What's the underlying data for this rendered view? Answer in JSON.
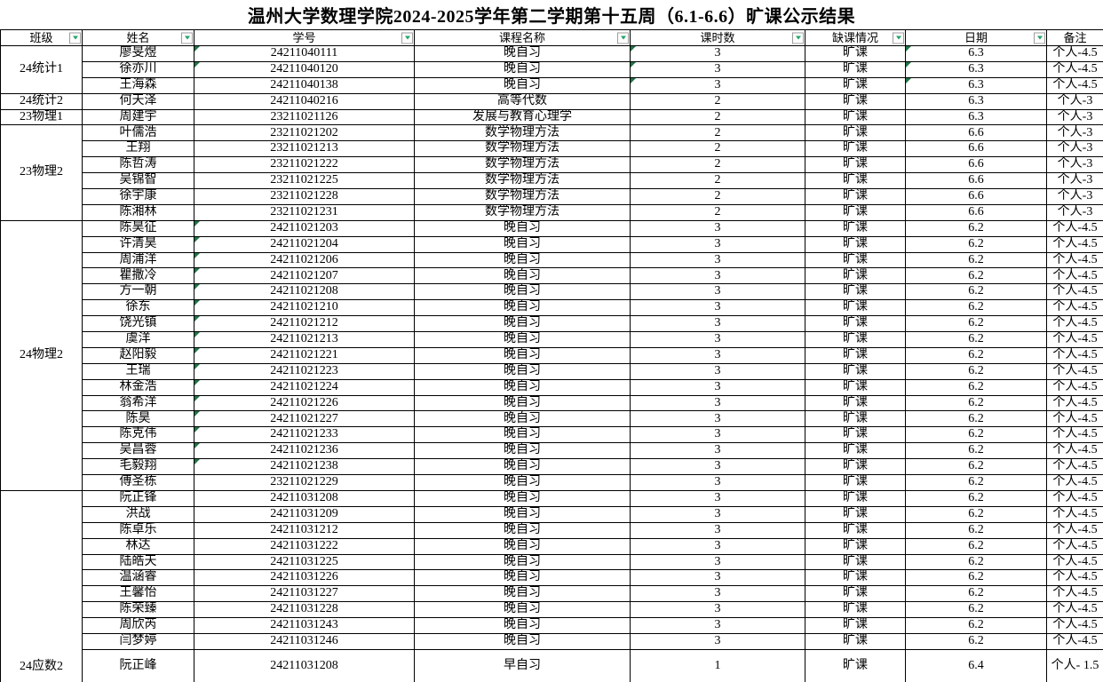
{
  "title": "温州大学数理学院2024-2025学年第二学期第十五周（6.1-6.6）旷课公示结果",
  "colors": {
    "indicator_green": "#217346",
    "filter_arrow_green": "#21a366",
    "grid_border": "#000000",
    "background": "#ffffff"
  },
  "table": {
    "columns": [
      {
        "label": "班级",
        "filter": true
      },
      {
        "label": "姓名",
        "filter": true
      },
      {
        "label": "学号",
        "filter": true
      },
      {
        "label": "课程名称",
        "filter": true
      },
      {
        "label": "课时数",
        "filter": true
      },
      {
        "label": "缺课情况",
        "filter": true
      },
      {
        "label": "日期",
        "filter": true
      },
      {
        "label": "备注",
        "filter": false
      }
    ],
    "class_groups": [
      {
        "label": "24统计1",
        "start": 0,
        "span": 3
      },
      {
        "label": "24统计2",
        "start": 3,
        "span": 1
      },
      {
        "label": "23物理1",
        "start": 4,
        "span": 1
      },
      {
        "label": "23物理2",
        "start": 5,
        "span": 6
      },
      {
        "label": "24物理2",
        "start": 11,
        "span": 17
      },
      {
        "label": "24应数2",
        "start": 28,
        "span": 11,
        "valign": "bottom"
      }
    ],
    "rows": [
      {
        "name": "廖旻煜",
        "id": "24211040111",
        "course": "晚自习",
        "hours": "3",
        "status": "旷课",
        "date": "6.3",
        "remark": "个人-4.5",
        "flags": [
          "id",
          "hours",
          "date"
        ]
      },
      {
        "name": "徐亦川",
        "id": "24211040120",
        "course": "晚自习",
        "hours": "3",
        "status": "旷课",
        "date": "6.3",
        "remark": "个人-4.5",
        "flags": [
          "id",
          "hours",
          "date"
        ]
      },
      {
        "name": "王海森",
        "id": "24211040138",
        "course": "晚自习",
        "hours": "3",
        "status": "旷课",
        "date": "6.3",
        "remark": "个人-4.5",
        "flags": [
          "hours",
          "date"
        ]
      },
      {
        "name": "何天泽",
        "id": "24211040216",
        "course": "高等代数",
        "hours": "2",
        "status": "旷课",
        "date": "6.3",
        "remark": "个人-3",
        "flags": []
      },
      {
        "name": "周建宇",
        "id": "23211021126",
        "course": "发展与教育心理学",
        "hours": "2",
        "status": "旷课",
        "date": "6.3",
        "remark": "个人-3",
        "flags": []
      },
      {
        "name": "叶儒浩",
        "id": "23211021202",
        "course": "数学物理方法",
        "hours": "2",
        "status": "旷课",
        "date": "6.6",
        "remark": "个人-3",
        "flags": []
      },
      {
        "name": "王翔",
        "id": "23211021213",
        "course": "数学物理方法",
        "hours": "2",
        "status": "旷课",
        "date": "6.6",
        "remark": "个人-3",
        "flags": []
      },
      {
        "name": "陈哲涛",
        "id": "23211021222",
        "course": "数学物理方法",
        "hours": "2",
        "status": "旷课",
        "date": "6.6",
        "remark": "个人-3",
        "flags": []
      },
      {
        "name": "吴锦智",
        "id": "23211021225",
        "course": "数学物理方法",
        "hours": "2",
        "status": "旷课",
        "date": "6.6",
        "remark": "个人-3",
        "flags": []
      },
      {
        "name": "徐宇康",
        "id": "23211021228",
        "course": "数学物理方法",
        "hours": "2",
        "status": "旷课",
        "date": "6.6",
        "remark": "个人-3",
        "flags": []
      },
      {
        "name": "陈湘林",
        "id": "23211021231",
        "course": "数学物理方法",
        "hours": "2",
        "status": "旷课",
        "date": "6.6",
        "remark": "个人-3",
        "flags": []
      },
      {
        "name": "陈昊征",
        "id": "24211021203",
        "course": "晚自习",
        "hours": "3",
        "status": "旷课",
        "date": "6.2",
        "remark": "个人-4.5",
        "flags": [
          "id"
        ]
      },
      {
        "name": "许清昊",
        "id": "24211021204",
        "course": "晚自习",
        "hours": "3",
        "status": "旷课",
        "date": "6.2",
        "remark": "个人-4.5",
        "flags": [
          "id"
        ]
      },
      {
        "name": "周浦洋",
        "id": "24211021206",
        "course": "晚自习",
        "hours": "3",
        "status": "旷课",
        "date": "6.2",
        "remark": "个人-4.5",
        "flags": [
          "id"
        ]
      },
      {
        "name": "瞿撒冷",
        "id": "24211021207",
        "course": "晚自习",
        "hours": "3",
        "status": "旷课",
        "date": "6.2",
        "remark": "个人-4.5",
        "flags": [
          "id"
        ]
      },
      {
        "name": "方一朝",
        "id": "24211021208",
        "course": "晚自习",
        "hours": "3",
        "status": "旷课",
        "date": "6.2",
        "remark": "个人-4.5",
        "flags": [
          "id"
        ]
      },
      {
        "name": "徐东",
        "id": "24211021210",
        "course": "晚自习",
        "hours": "3",
        "status": "旷课",
        "date": "6.2",
        "remark": "个人-4.5",
        "flags": [
          "id"
        ]
      },
      {
        "name": "饶光镇",
        "id": "24211021212",
        "course": "晚自习",
        "hours": "3",
        "status": "旷课",
        "date": "6.2",
        "remark": "个人-4.5",
        "flags": [
          "id"
        ]
      },
      {
        "name": "虞洋",
        "id": "24211021213",
        "course": "晚自习",
        "hours": "3",
        "status": "旷课",
        "date": "6.2",
        "remark": "个人-4.5",
        "flags": [
          "id"
        ]
      },
      {
        "name": "赵阳毅",
        "id": "24211021221",
        "course": "晚自习",
        "hours": "3",
        "status": "旷课",
        "date": "6.2",
        "remark": "个人-4.5",
        "flags": [
          "id"
        ]
      },
      {
        "name": "王瑞",
        "id": "24211021223",
        "course": "晚自习",
        "hours": "3",
        "status": "旷课",
        "date": "6.2",
        "remark": "个人-4.5",
        "flags": [
          "id"
        ]
      },
      {
        "name": "林金浩",
        "id": "24211021224",
        "course": "晚自习",
        "hours": "3",
        "status": "旷课",
        "date": "6.2",
        "remark": "个人-4.5",
        "flags": [
          "id"
        ]
      },
      {
        "name": "翁希洋",
        "id": "24211021226",
        "course": "晚自习",
        "hours": "3",
        "status": "旷课",
        "date": "6.2",
        "remark": "个人-4.5",
        "flags": [
          "id"
        ]
      },
      {
        "name": "陈昊",
        "id": "24211021227",
        "course": "晚自习",
        "hours": "3",
        "status": "旷课",
        "date": "6.2",
        "remark": "个人-4.5",
        "flags": [
          "id"
        ]
      },
      {
        "name": "陈克伟",
        "id": "24211021233",
        "course": "晚自习",
        "hours": "3",
        "status": "旷课",
        "date": "6.2",
        "remark": "个人-4.5",
        "flags": [
          "id"
        ]
      },
      {
        "name": "吴昌蓉",
        "id": "24211021236",
        "course": "晚自习",
        "hours": "3",
        "status": "旷课",
        "date": "6.2",
        "remark": "个人-4.5",
        "flags": [
          "id"
        ]
      },
      {
        "name": "毛毅翔",
        "id": "24211021238",
        "course": "晚自习",
        "hours": "3",
        "status": "旷课",
        "date": "6.2",
        "remark": "个人-4.5",
        "flags": [
          "id"
        ]
      },
      {
        "name": "傅圣栋",
        "id": "23211021229",
        "course": "晚自习",
        "hours": "3",
        "status": "旷课",
        "date": "6.2",
        "remark": "个人-4.5",
        "flags": []
      },
      {
        "name": "阮正锋",
        "id": "24211031208",
        "course": "晚自习",
        "hours": "3",
        "status": "旷课",
        "date": "6.2",
        "remark": "个人-4.5",
        "flags": []
      },
      {
        "name": "洪战",
        "id": "24211031209",
        "course": "晚自习",
        "hours": "3",
        "status": "旷课",
        "date": "6.2",
        "remark": "个人-4.5",
        "flags": []
      },
      {
        "name": "陈卓乐",
        "id": "24211031212",
        "course": "晚自习",
        "hours": "3",
        "status": "旷课",
        "date": "6.2",
        "remark": "个人-4.5",
        "flags": []
      },
      {
        "name": "林达",
        "id": "24211031222",
        "course": "晚自习",
        "hours": "3",
        "status": "旷课",
        "date": "6.2",
        "remark": "个人-4.5",
        "flags": []
      },
      {
        "name": "陆皓天",
        "id": "24211031225",
        "course": "晚自习",
        "hours": "3",
        "status": "旷课",
        "date": "6.2",
        "remark": "个人-4.5",
        "flags": []
      },
      {
        "name": "温涵睿",
        "id": "24211031226",
        "course": "晚自习",
        "hours": "3",
        "status": "旷课",
        "date": "6.2",
        "remark": "个人-4.5",
        "flags": []
      },
      {
        "name": "王馨怡",
        "id": "24211031227",
        "course": "晚自习",
        "hours": "3",
        "status": "旷课",
        "date": "6.2",
        "remark": "个人-4.5",
        "flags": []
      },
      {
        "name": "陈荣臻",
        "id": "24211031228",
        "course": "晚自习",
        "hours": "3",
        "status": "旷课",
        "date": "6.2",
        "remark": "个人-4.5",
        "flags": []
      },
      {
        "name": "周欣芮",
        "id": "24211031243",
        "course": "晚自习",
        "hours": "3",
        "status": "旷课",
        "date": "6.2",
        "remark": "个人-4.5",
        "flags": []
      },
      {
        "name": "闫梦婷",
        "id": "24211031246",
        "course": "晚自习",
        "hours": "3",
        "status": "旷课",
        "date": "6.2",
        "remark": "个人-4.5",
        "flags": []
      },
      {
        "name": "阮正峰",
        "id": "24211031208",
        "course": "早自习",
        "hours": "1",
        "status": "旷课",
        "date": "6.4",
        "remark": "个人-\n1.5",
        "flags": []
      }
    ]
  }
}
